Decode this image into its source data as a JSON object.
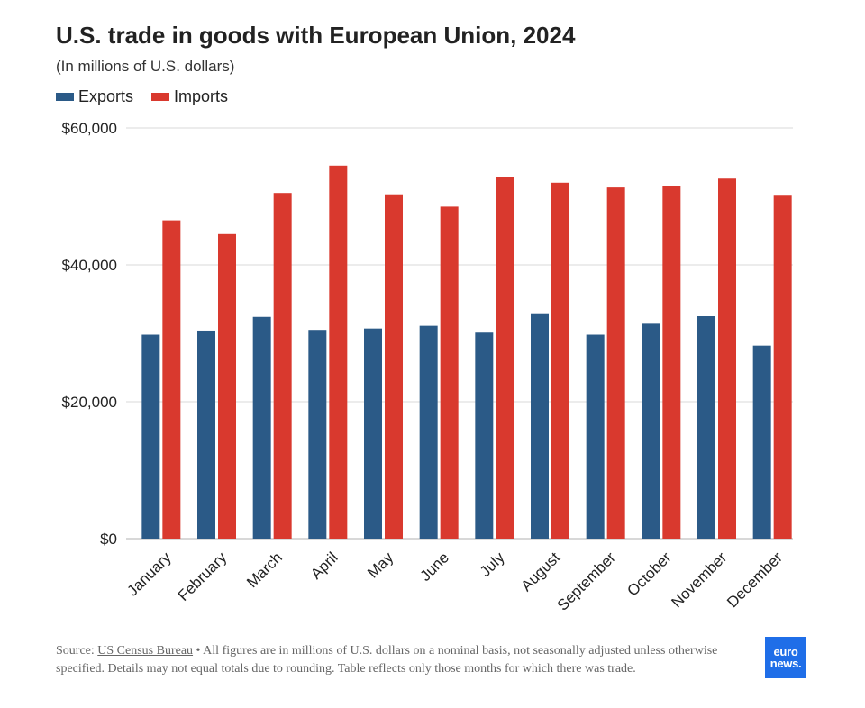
{
  "chart_data": {
    "type": "bar",
    "title": "U.S. trade in goods with European Union, 2024",
    "subtitle": "(In millions of U.S. dollars)",
    "categories": [
      "January",
      "February",
      "March",
      "April",
      "May",
      "June",
      "July",
      "August",
      "September",
      "October",
      "November",
      "December"
    ],
    "series": [
      {
        "name": "Exports",
        "color": "#2b5a87",
        "values": [
          29800,
          30400,
          32400,
          30500,
          30700,
          31100,
          30100,
          32800,
          29800,
          31400,
          32500,
          28200
        ]
      },
      {
        "name": "Imports",
        "color": "#d9392e",
        "values": [
          46500,
          44500,
          50500,
          54500,
          50300,
          48500,
          52800,
          52000,
          51300,
          51500,
          52600,
          50100
        ]
      }
    ],
    "ylim": [
      0,
      60000
    ],
    "yticks": [
      0,
      20000,
      40000,
      60000
    ],
    "ytick_labels": [
      "$0",
      "$20,000",
      "$40,000",
      "$60,000"
    ],
    "grid": true,
    "legend": "top-left"
  },
  "source": {
    "prefix": "Source: ",
    "link": "US Census Bureau",
    "text": " • All figures are in millions of U.S. dollars on a nominal basis, not seasonally adjusted unless otherwise specified. Details may not equal totals due to rounding. Table reflects only those months for which there was trade."
  },
  "logo": {
    "line1": "euro",
    "line2": "news."
  }
}
